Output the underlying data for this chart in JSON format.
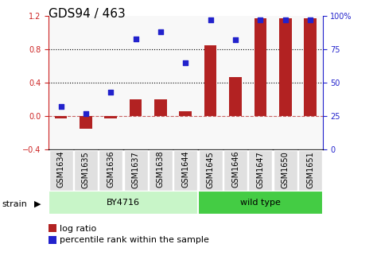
{
  "title": "GDS94 / 463",
  "samples": [
    "GSM1634",
    "GSM1635",
    "GSM1636",
    "GSM1637",
    "GSM1638",
    "GSM1644",
    "GSM1645",
    "GSM1646",
    "GSM1647",
    "GSM1650",
    "GSM1651"
  ],
  "log_ratio": [
    -0.03,
    -0.15,
    -0.03,
    0.2,
    0.2,
    0.06,
    0.85,
    0.47,
    1.17,
    1.17,
    1.17
  ],
  "percentile": [
    32,
    27,
    43,
    83,
    88,
    65,
    97,
    82,
    97,
    97,
    97
  ],
  "bar_color": "#b22222",
  "dot_color": "#2222cc",
  "left_ylim": [
    -0.4,
    1.2
  ],
  "right_ylim": [
    0,
    100
  ],
  "left_yticks": [
    -0.4,
    0.0,
    0.4,
    0.8,
    1.2
  ],
  "right_yticks": [
    0,
    25,
    50,
    75,
    100
  ],
  "right_yticklabels": [
    "0",
    "25",
    "50",
    "75",
    "100%"
  ],
  "hlines": [
    0.4,
    0.8
  ],
  "zero_line": 0.0,
  "strain_groups": [
    {
      "label": "BY4716",
      "start": 0,
      "end": 6,
      "color": "#c8f5c8"
    },
    {
      "label": "wild type",
      "start": 6,
      "end": 11,
      "color": "#44cc44"
    }
  ],
  "strain_label": "strain",
  "legend": [
    {
      "label": "log ratio",
      "color": "#b22222"
    },
    {
      "label": "percentile rank within the sample",
      "color": "#2222cc"
    }
  ],
  "axis_color_left": "#cc2222",
  "axis_color_right": "#2222cc",
  "title_fontsize": 11,
  "tick_fontsize": 7,
  "label_fontsize": 8
}
